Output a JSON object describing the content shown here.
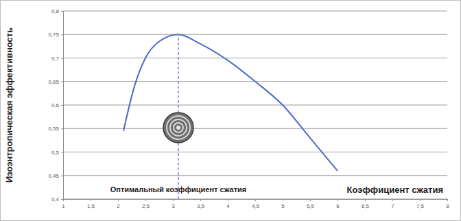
{
  "chart_data": {
    "type": "line",
    "y_label": "Изоэнтропическая эффективность",
    "x_label": "Коэффициент сжатия",
    "x": [
      2.1,
      2.3,
      2.5,
      2.75,
      3.1,
      3.5,
      4,
      4.5,
      5,
      5.5,
      6
    ],
    "values": [
      0.545,
      0.64,
      0.7,
      0.735,
      0.75,
      0.73,
      0.695,
      0.65,
      0.6,
      0.53,
      0.46
    ],
    "color": "#4a6cc4",
    "xlim": [
      1,
      8
    ],
    "ylim": [
      0.4,
      0.8
    ],
    "xticks": [
      1,
      {
        "value": 1.5,
        "label": "1,5"
      },
      2,
      {
        "value": 2.5,
        "label": "2,5"
      },
      3,
      {
        "value": 3.5,
        "label": "3,5"
      },
      4,
      {
        "value": 4.5,
        "label": "4,5"
      },
      5,
      {
        "value": 5.5,
        "label": "5,5"
      },
      6,
      {
        "value": 6.5,
        "label": "6,5"
      },
      7,
      {
        "value": 7.5,
        "label": "7,5"
      },
      8
    ],
    "yticks": [
      {
        "value": 0.4,
        "label": "0,4"
      },
      {
        "value": 0.45,
        "label": "0,45"
      },
      {
        "value": 0.5,
        "label": "0,5"
      },
      {
        "value": 0.55,
        "label": "0,55"
      },
      {
        "value": 0.6,
        "label": "0,6"
      },
      {
        "value": 0.65,
        "label": "0,65"
      },
      {
        "value": 0.7,
        "label": "0,7"
      },
      {
        "value": 0.75,
        "label": "0,75"
      },
      {
        "value": 0.8,
        "label": "0,8"
      }
    ],
    "grid": true,
    "annotations": [
      {
        "text": "Оптимальный коэффициент сжатия",
        "x": 3.1
      }
    ]
  }
}
